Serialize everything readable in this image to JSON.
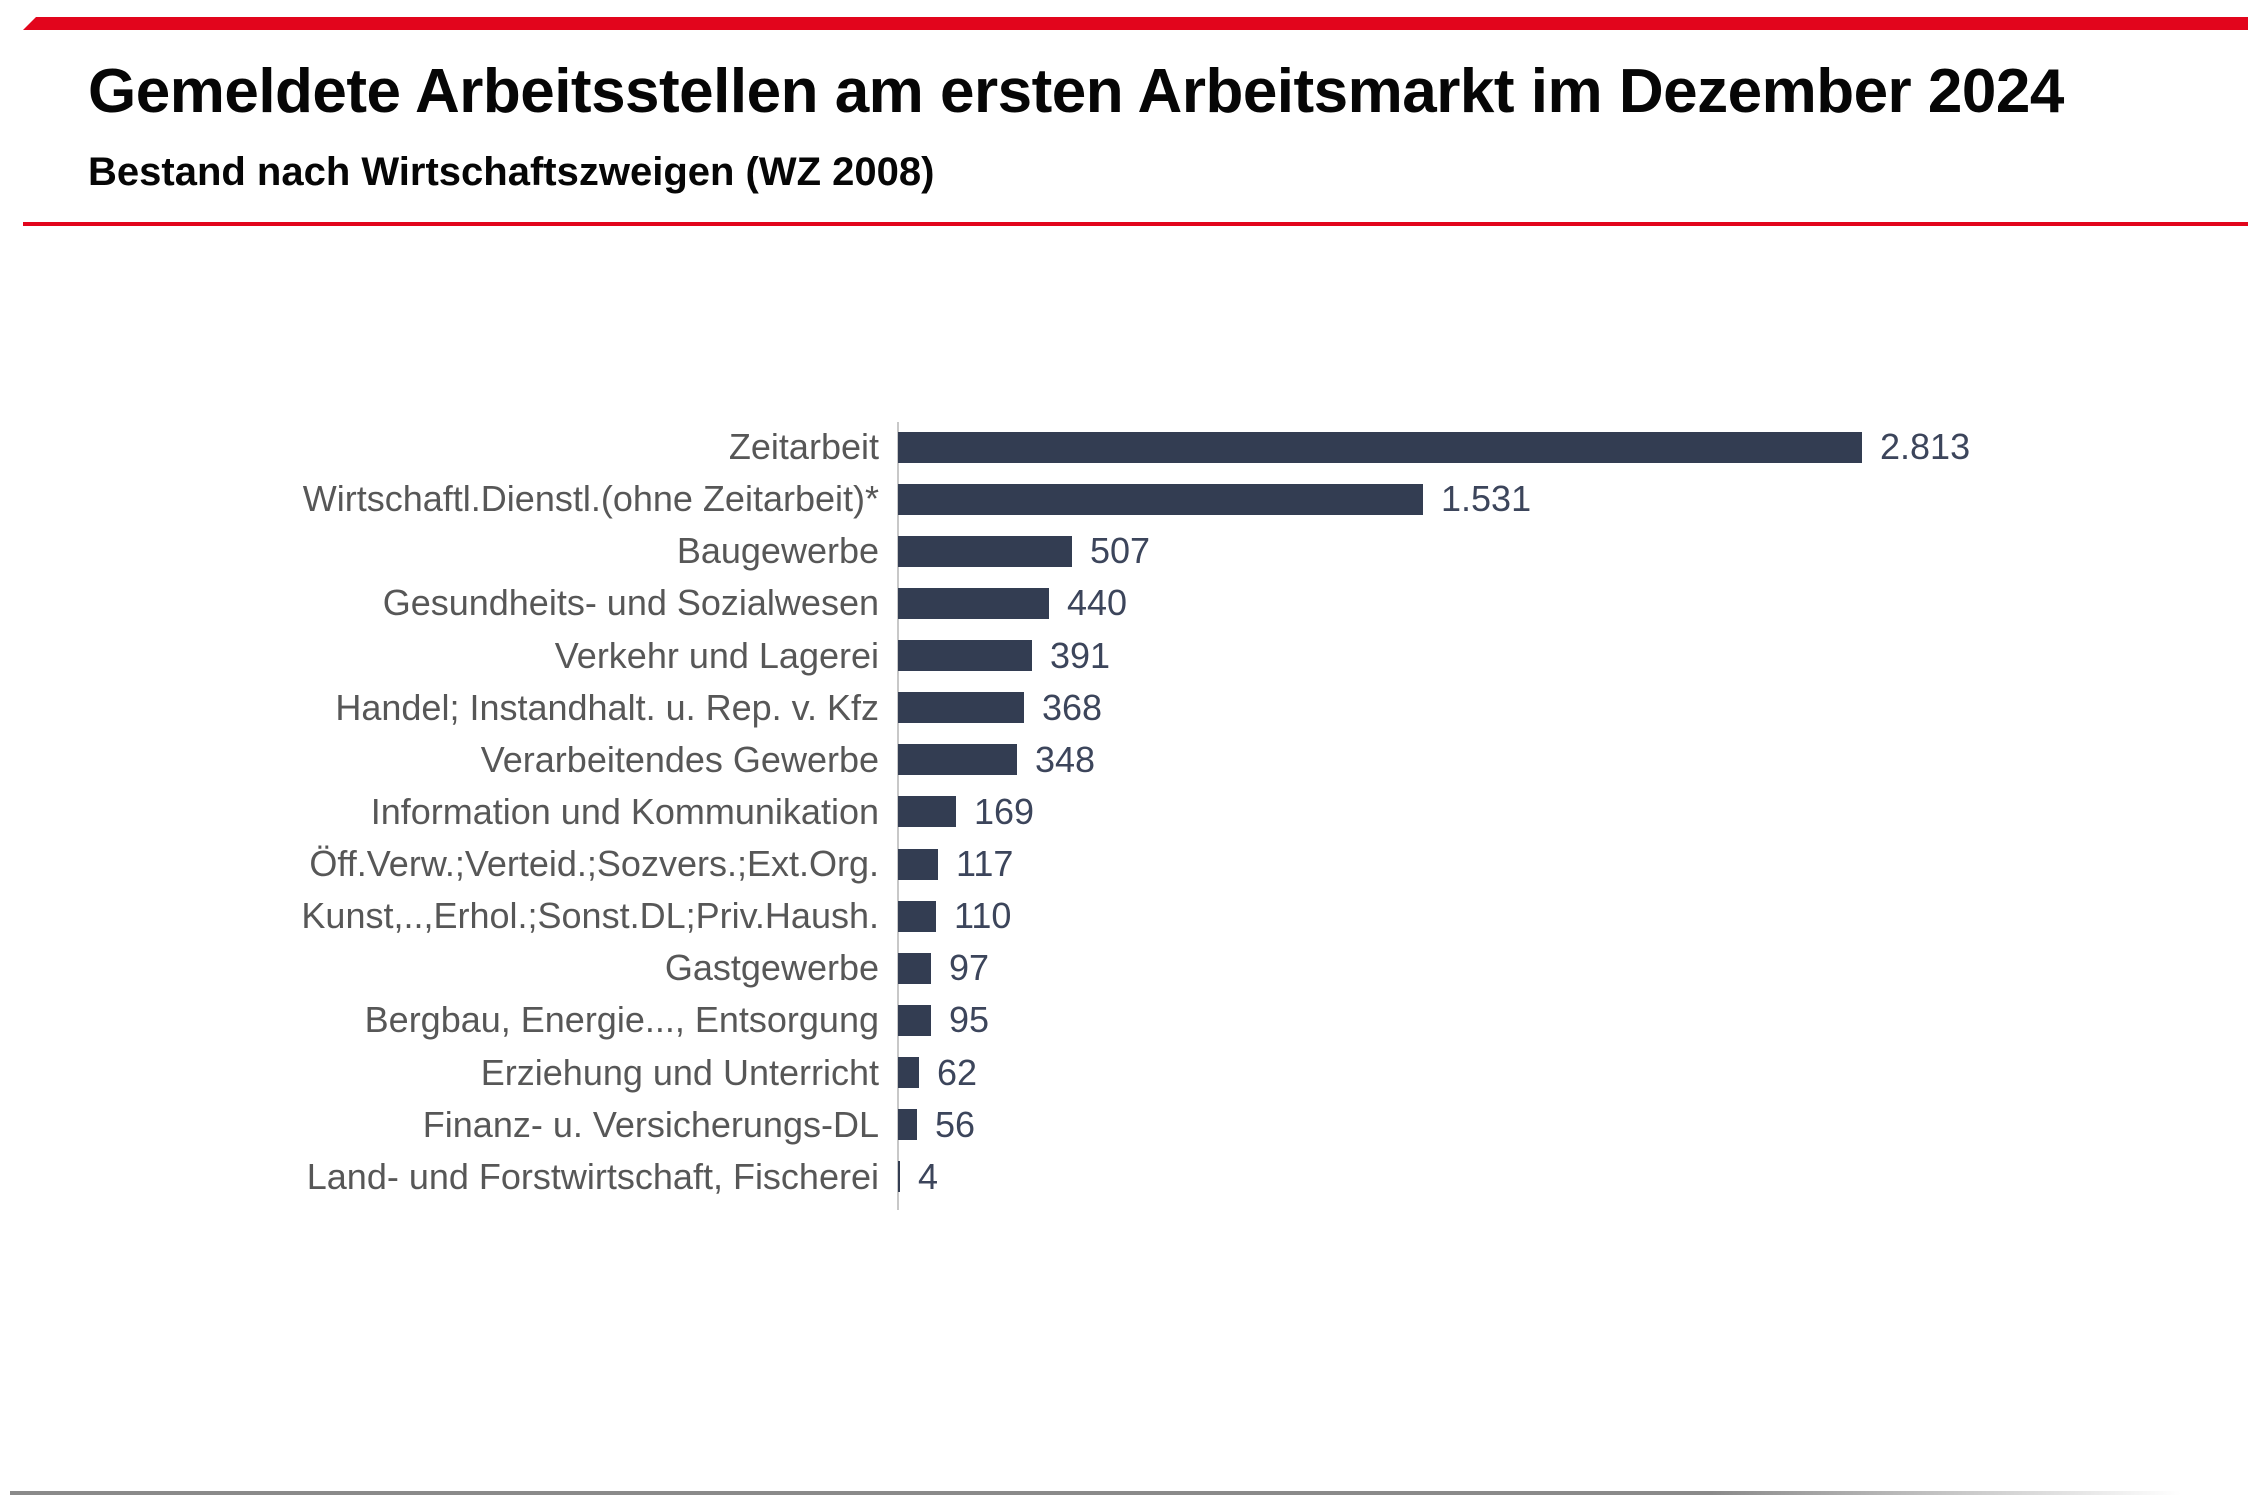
{
  "header": {
    "title": "Gemeldete Arbeitsstellen am ersten Arbeitsmarkt im Dezember 2024",
    "subtitle": "Bestand nach Wirtschaftszweigen (WZ 2008)"
  },
  "colors": {
    "accent_red": "#E2051C",
    "bar_fill": "#333D52",
    "value_text": "#3C455B",
    "label_text": "#575757",
    "axis_line": "#C8C8C8",
    "bottom_rule": "#8A8A8A"
  },
  "chart_data": {
    "type": "bar",
    "orientation": "horizontal",
    "title": "Gemeldete Arbeitsstellen am ersten Arbeitsmarkt im Dezember 2024",
    "subtitle": "Bestand nach Wirtschaftszweigen (WZ 2008)",
    "xlabel": "",
    "ylabel": "",
    "xlim": [
      0,
      3000
    ],
    "grid": false,
    "legend": false,
    "categories": [
      "Zeitarbeit",
      "Wirtschaftl.Dienstl.(ohne Zeitarbeit)*",
      "Baugewerbe",
      "Gesundheits- und Sozialwesen",
      "Verkehr und Lagerei",
      "Handel; Instandhalt. u. Rep. v. Kfz",
      "Verarbeitendes Gewerbe",
      "Information und Kommunikation",
      "Öff.Verw.;Verteid.;Sozvers.;Ext.Org.",
      "Kunst,..,Erhol.;Sonst.DL;Priv.Haush.",
      "Gastgewerbe",
      "Bergbau, Energie..., Entsorgung",
      "Erziehung und Unterricht",
      "Finanz- u. Versicherungs-DL",
      "Land- und Forstwirtschaft, Fischerei"
    ],
    "values": [
      2813,
      1531,
      507,
      440,
      391,
      368,
      348,
      169,
      117,
      110,
      97,
      95,
      62,
      56,
      4
    ],
    "value_labels": [
      "2.813",
      "1.531",
      "507",
      "440",
      "391",
      "368",
      "348",
      "169",
      "117",
      "110",
      "97",
      "95",
      "62",
      "56",
      "4"
    ]
  }
}
